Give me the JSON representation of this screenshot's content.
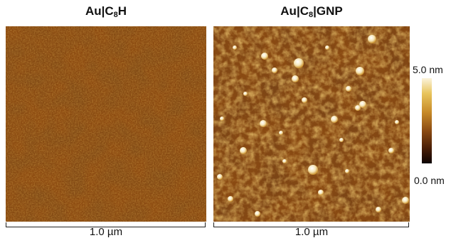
{
  "panels": [
    {
      "title_main": "Au|C",
      "title_sub": "8",
      "title_tail": "H",
      "scale_label": "1.0 µm"
    },
    {
      "title_main": "Au|C",
      "title_sub": "8",
      "title_tail": "|GNP",
      "scale_label": "1.0 µm"
    }
  ],
  "colorbar": {
    "max_label": "5.0 nm",
    "min_label": "0.0 nm",
    "colors": [
      "#fbf3dc",
      "#e8c45c",
      "#c78a28",
      "#8a4a12",
      "#4a1f07",
      "#0d0402"
    ]
  }
}
